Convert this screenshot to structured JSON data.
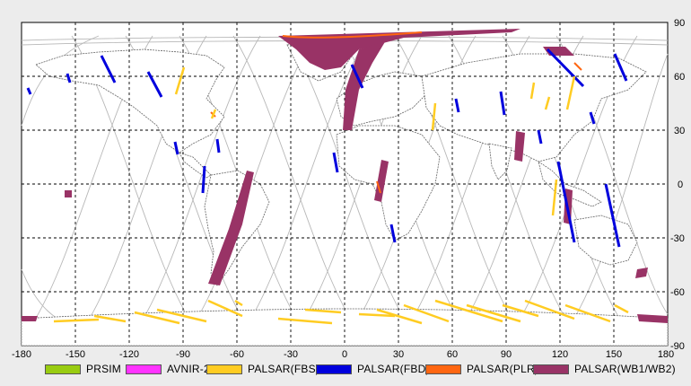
{
  "map": {
    "lon_ticks": [
      "-180",
      "-150",
      "-120",
      "-90",
      "-60",
      "-30",
      "0",
      "30",
      "60",
      "90",
      "120",
      "150",
      "180"
    ],
    "lat_ticks": [
      "90",
      "60",
      "30",
      "0",
      "-30",
      "-60",
      "-90"
    ],
    "lon_range": [
      -180,
      180
    ],
    "lat_range": [
      -90,
      90
    ],
    "grid": "dashed"
  },
  "legend": {
    "items": [
      {
        "label": "PRSIM",
        "color": "#99cc11"
      },
      {
        "label": "AVNIR-2",
        "color": "#ff33ff"
      },
      {
        "label": "PALSAR(FBS)",
        "color": "#ffcc22"
      },
      {
        "label": "PALSAR(FBD)",
        "color": "#0000dd"
      },
      {
        "label": "PALSAR(PLR)",
        "color": "#ff6611"
      },
      {
        "label": "PALSAR(WB1/WB2)",
        "color": "#993366"
      }
    ]
  }
}
